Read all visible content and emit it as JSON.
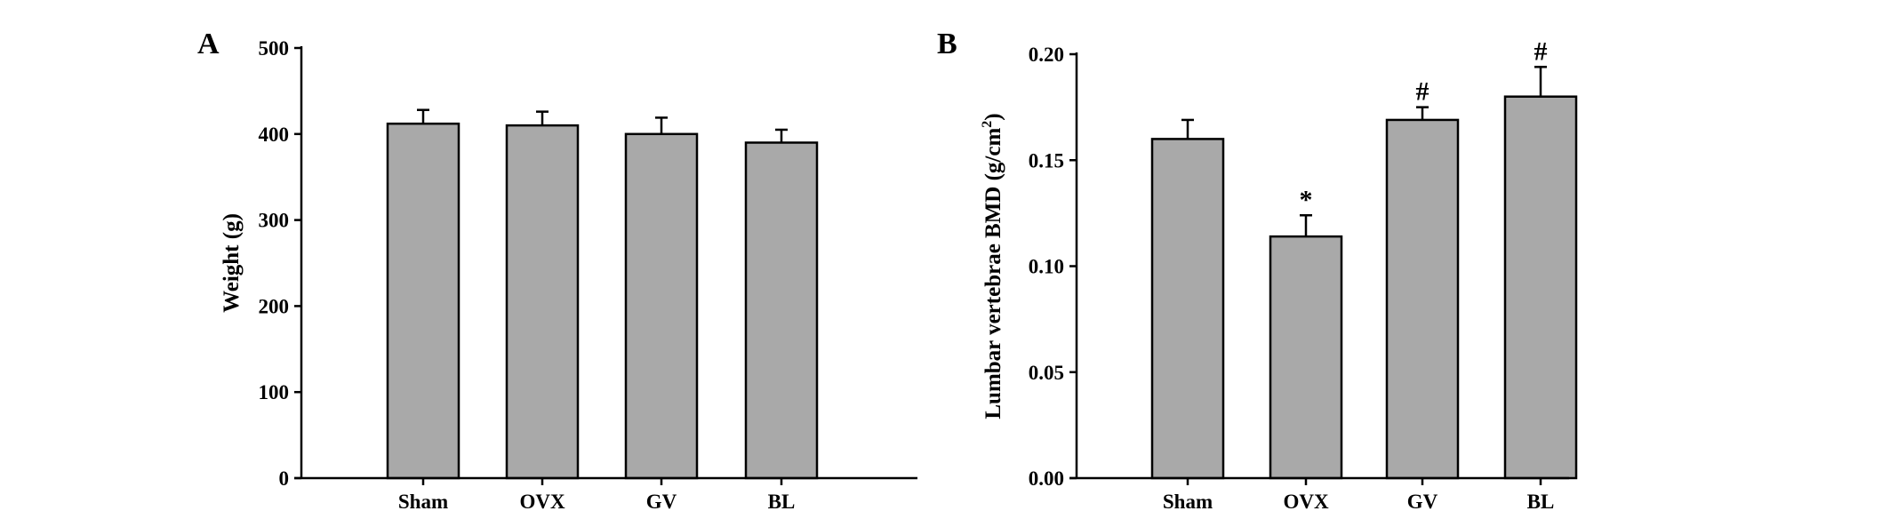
{
  "chart_data": [
    {
      "type": "bar",
      "panel_label": "A",
      "title": "",
      "xlabel": "",
      "ylabel": "Weight (g)",
      "categories": [
        "Sham",
        "OVX",
        "GV",
        "BL"
      ],
      "values": [
        412,
        410,
        400,
        390
      ],
      "errors": [
        16,
        16,
        19,
        15
      ],
      "annotations": [
        "",
        "",
        "",
        ""
      ],
      "ylim": [
        0,
        500
      ],
      "yticks": [
        0,
        100,
        200,
        300,
        400,
        500
      ],
      "ytick_labels": [
        "0",
        "100",
        "200",
        "300",
        "400",
        "500"
      ],
      "grid": false,
      "bar_color": "#a9a9a9"
    },
    {
      "type": "bar",
      "panel_label": "B",
      "title": "",
      "xlabel": "",
      "ylabel": "Lumbar vertebrae BMD (g/cm",
      "ylabel_sup": "2",
      "ylabel_end": ")",
      "categories": [
        "Sham",
        "OVX",
        "GV",
        "BL"
      ],
      "values": [
        0.16,
        0.114,
        0.169,
        0.18
      ],
      "errors": [
        0.009,
        0.01,
        0.006,
        0.014
      ],
      "annotations": [
        "",
        "*",
        "#",
        "#"
      ],
      "ylim": [
        0,
        0.2
      ],
      "yticks": [
        0,
        0.05,
        0.1,
        0.15,
        0.2
      ],
      "ytick_labels": [
        "0.00",
        "0.05",
        "0.10",
        "0.15",
        "0.20"
      ],
      "grid": false,
      "bar_color": "#a9a9a9"
    }
  ]
}
